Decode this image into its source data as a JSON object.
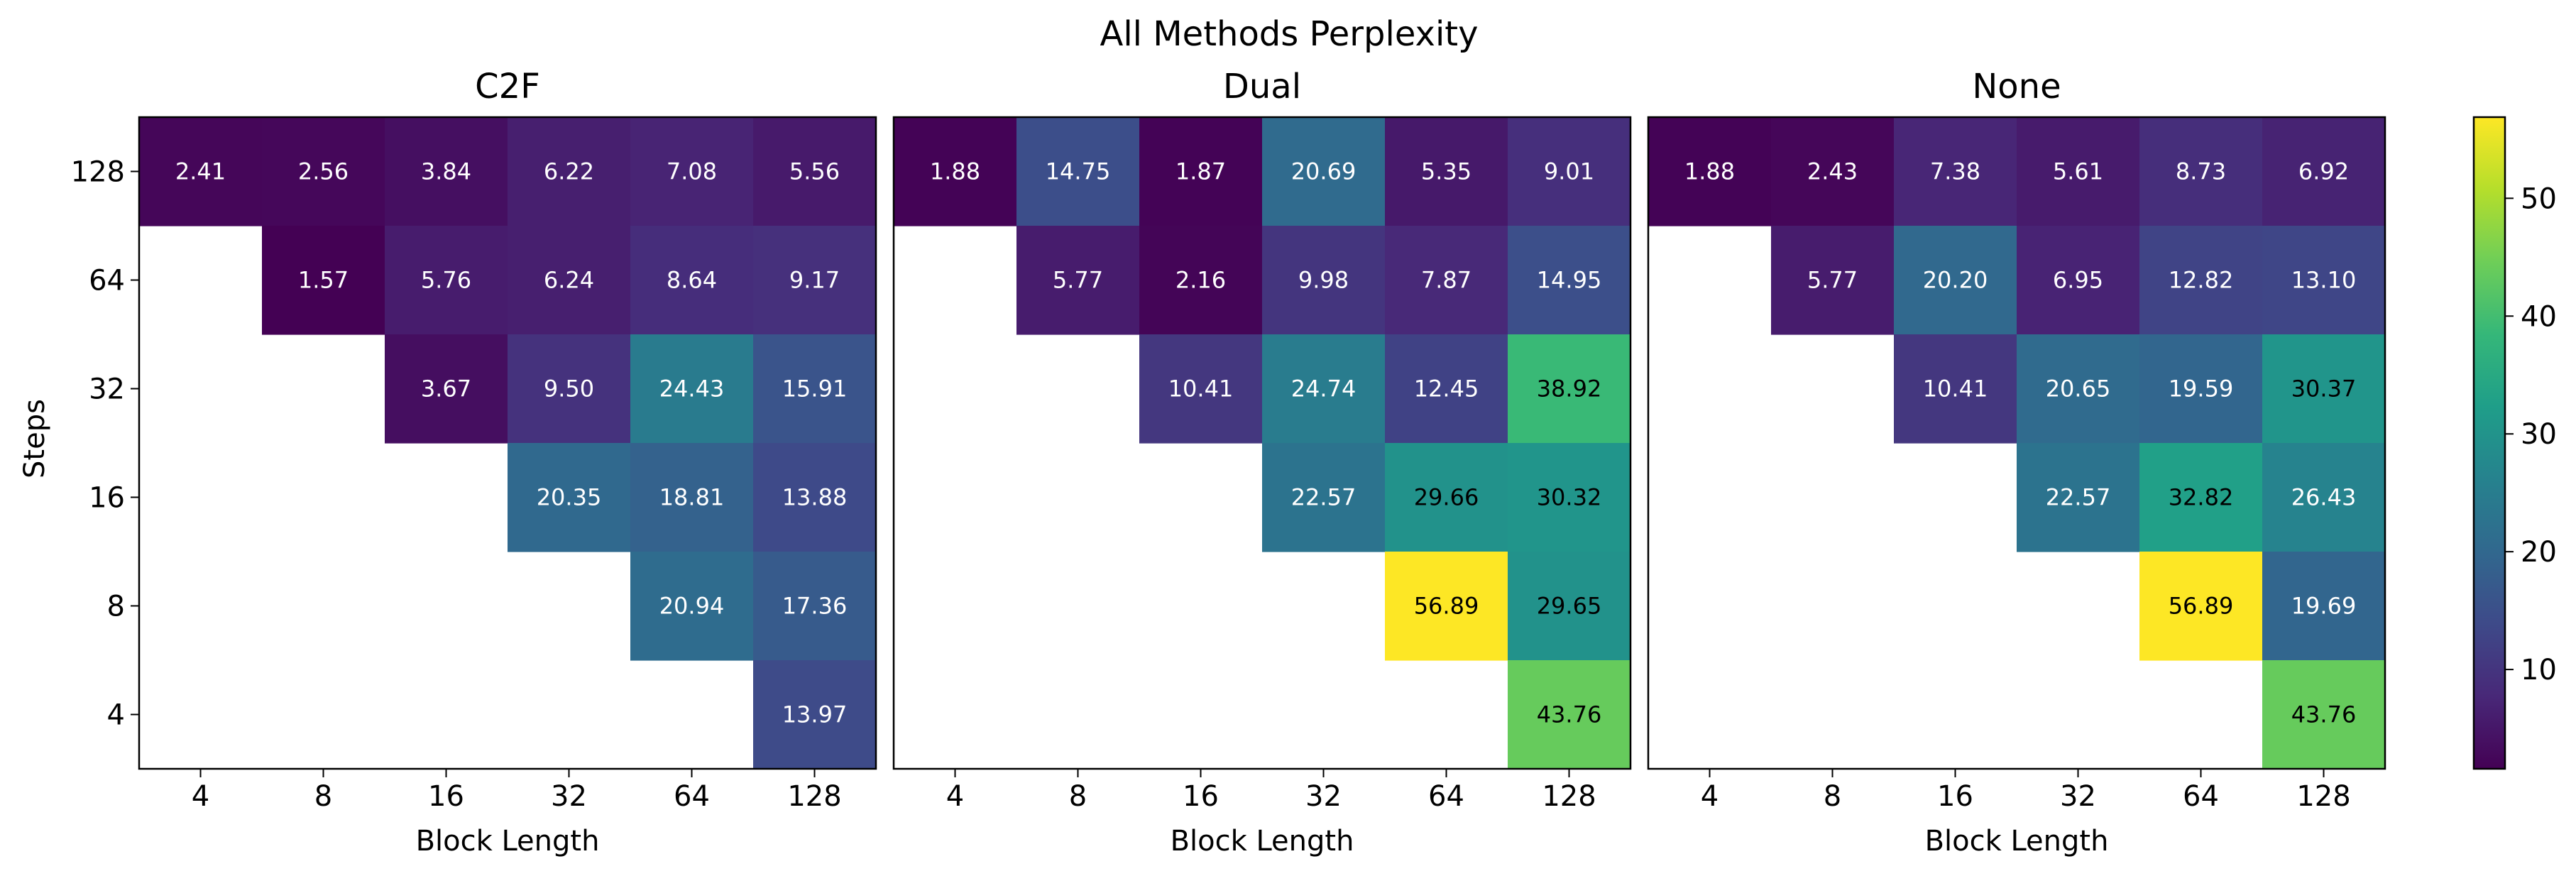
{
  "chart_data": {
    "type": "heatmap",
    "title": "All Methods Perplexity",
    "xlabel": "Block Length",
    "ylabel": "Steps",
    "x_ticks": [
      "4",
      "8",
      "16",
      "32",
      "64",
      "128"
    ],
    "y_ticks": [
      "128",
      "64",
      "32",
      "16",
      "8",
      "4"
    ],
    "colormap": "viridis",
    "vmin": 1.57,
    "vmax": 56.89,
    "colorbar_ticks": [
      "10",
      "20",
      "30",
      "40",
      "50"
    ],
    "colorbar_tick_values": [
      10,
      20,
      30,
      40,
      50
    ],
    "panels": [
      {
        "title": "C2F",
        "values": [
          [
            2.41,
            2.56,
            3.84,
            6.22,
            7.08,
            5.56
          ],
          [
            null,
            1.57,
            5.76,
            6.24,
            8.64,
            9.17
          ],
          [
            null,
            null,
            3.67,
            9.5,
            24.43,
            15.91
          ],
          [
            null,
            null,
            null,
            20.35,
            18.81,
            13.88
          ],
          [
            null,
            null,
            null,
            null,
            20.94,
            17.36
          ],
          [
            null,
            null,
            null,
            null,
            null,
            13.97
          ]
        ],
        "labels": [
          [
            "2.41",
            "2.56",
            "3.84",
            "6.22",
            "7.08",
            "5.56"
          ],
          [
            "",
            "1.57",
            "5.76",
            "6.24",
            "8.64",
            "9.17"
          ],
          [
            "",
            "",
            "3.67",
            "9.50",
            "24.43",
            "15.91"
          ],
          [
            "",
            "",
            "",
            "20.35",
            "18.81",
            "13.88"
          ],
          [
            "",
            "",
            "",
            "",
            "20.94",
            "17.36"
          ],
          [
            "",
            "",
            "",
            "",
            "",
            "13.97"
          ]
        ]
      },
      {
        "title": "Dual",
        "values": [
          [
            1.88,
            14.75,
            1.87,
            20.69,
            5.35,
            9.01
          ],
          [
            null,
            5.77,
            2.16,
            9.98,
            7.87,
            14.95
          ],
          [
            null,
            null,
            10.41,
            24.74,
            12.45,
            38.92
          ],
          [
            null,
            null,
            null,
            22.57,
            29.66,
            30.32
          ],
          [
            null,
            null,
            null,
            null,
            56.89,
            29.65
          ],
          [
            null,
            null,
            null,
            null,
            null,
            43.76
          ]
        ],
        "labels": [
          [
            "1.88",
            "14.75",
            "1.87",
            "20.69",
            "5.35",
            "9.01"
          ],
          [
            "",
            "5.77",
            "2.16",
            "9.98",
            "7.87",
            "14.95"
          ],
          [
            "",
            "",
            "10.41",
            "24.74",
            "12.45",
            "38.92"
          ],
          [
            "",
            "",
            "",
            "22.57",
            "29.66",
            "30.32"
          ],
          [
            "",
            "",
            "",
            "",
            "56.89",
            "29.65"
          ],
          [
            "",
            "",
            "",
            "",
            "",
            "43.76"
          ]
        ]
      },
      {
        "title": "None",
        "values": [
          [
            1.88,
            2.43,
            7.38,
            5.61,
            8.73,
            6.92
          ],
          [
            null,
            5.77,
            20.2,
            6.95,
            12.82,
            13.1
          ],
          [
            null,
            null,
            10.41,
            20.65,
            19.59,
            30.37
          ],
          [
            null,
            null,
            null,
            22.57,
            32.82,
            26.43
          ],
          [
            null,
            null,
            null,
            null,
            56.89,
            19.69
          ],
          [
            null,
            null,
            null,
            null,
            null,
            43.76
          ]
        ],
        "labels": [
          [
            "1.88",
            "2.43",
            "7.38",
            "5.61",
            "8.73",
            "6.92"
          ],
          [
            "",
            "5.77",
            "20.20",
            "6.95",
            "12.82",
            "13.10"
          ],
          [
            "",
            "",
            "10.41",
            "20.65",
            "19.59",
            "30.37"
          ],
          [
            "",
            "",
            "",
            "22.57",
            "32.82",
            "26.43"
          ],
          [
            "",
            "",
            "",
            "",
            "56.89",
            "19.69"
          ],
          [
            "",
            "",
            "",
            "",
            "",
            "43.76"
          ]
        ]
      }
    ]
  }
}
